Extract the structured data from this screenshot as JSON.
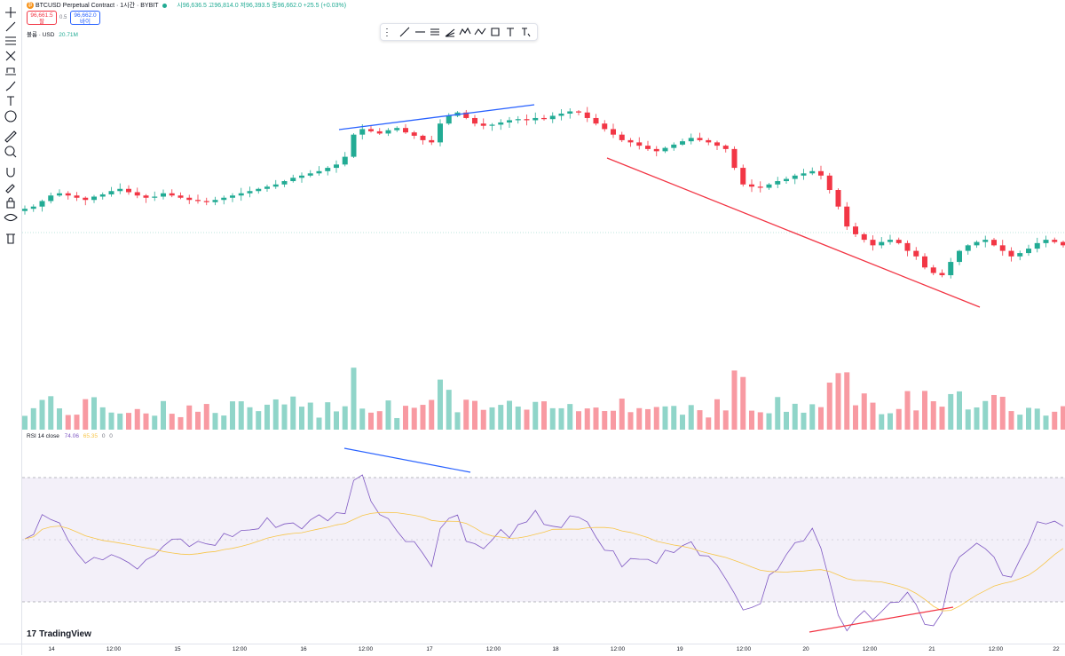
{
  "header": {
    "symbol_icon": "bitcoin-icon",
    "symbol_title": "BTCUSD Perpetual Contract · 1시간 · BYBIT",
    "ohlc": "시96,636.5  고96,814.0  저96,393.5  종96,662.0  +25.5 (+0.03%)",
    "sell_price": "96,661.5",
    "sell_label": "팔",
    "buy_price": "96,662.0",
    "buy_label": "바이",
    "spread": "0.5"
  },
  "volume_legend": {
    "label": "볼륨 · USD",
    "value": "20.71M"
  },
  "rsi_legend": {
    "label": "RSI 14 close",
    "rsi": "74.06",
    "ma": "65.35",
    "extra1": "0",
    "extra2": "0"
  },
  "brand": "TradingView",
  "left_tools": [
    "crosshair-icon",
    "trend-line-icon",
    "fib-retracement-icon",
    "pattern-icon",
    "prediction-icon",
    "brush-icon",
    "text-icon",
    "emoji-icon",
    "ruler-icon",
    "zoom-in-icon",
    "magnet-icon",
    "lock-drawing-icon",
    "lock-icon",
    "eye-icon",
    "trash-icon"
  ],
  "drawing_toolbar": [
    "drag-handle-icon",
    "trend-line-icon",
    "horizontal-ray-icon",
    "parallel-channel-icon",
    "fib-fan-icon",
    "elliott-wave-icon",
    "pattern-zigzag-icon",
    "rectangle-icon",
    "text-icon",
    "anchored-text-icon"
  ],
  "x_axis": [
    "14",
    "12:00",
    "15",
    "12:00",
    "16",
    "12:00",
    "17",
    "12:00",
    "18",
    "12:00",
    "19",
    "12:00",
    "20",
    "12:00",
    "21",
    "12:00",
    "22"
  ],
  "colors": {
    "up": "#22ab94",
    "down": "#f23645",
    "rsi": "#7e57c2",
    "rsi_ma": "#f7c548",
    "trend_up": "#2962ff",
    "trend_down": "#f23645",
    "band": "#7e57c2"
  },
  "chart_data": {
    "type": "candlestick",
    "interval": "1h",
    "close_series": [
      96580,
      96600,
      96650,
      96700,
      96720,
      96700,
      96680,
      96660,
      96690,
      96710,
      96740,
      96760,
      96730,
      96700,
      96680,
      96690,
      96720,
      96700,
      96680,
      96660,
      96650,
      96640,
      96660,
      96680,
      96700,
      96720,
      96740,
      96760,
      96780,
      96800,
      96830,
      96860,
      96880,
      96900,
      96920,
      96950,
      96980,
      97050,
      97250,
      97300,
      97280,
      97260,
      97290,
      97310,
      97270,
      97240,
      97200,
      97180,
      97350,
      97420,
      97450,
      97400,
      97350,
      97330,
      97340,
      97360,
      97380,
      97390,
      97380,
      97400,
      97390,
      97420,
      97440,
      97460,
      97450,
      97400,
      97350,
      97300,
      97250,
      97200,
      97180,
      97150,
      97120,
      97100,
      97130,
      97160,
      97190,
      97220,
      97200,
      97180,
      97150,
      97120,
      96950,
      96800,
      96780,
      96770,
      96800,
      96830,
      96850,
      96880,
      96900,
      96920,
      96880,
      96750,
      96600,
      96420,
      96350,
      96300,
      96250,
      96280,
      96300,
      96270,
      96200,
      96150,
      96050,
      96000,
      95980,
      96100,
      96200,
      96250,
      96280,
      96300,
      96250,
      96200,
      96150,
      96180,
      96220,
      96270,
      96300,
      96280,
      96250
    ],
    "rsi_range": [
      0,
      100
    ],
    "rsi_bands": [
      30,
      70
    ]
  }
}
